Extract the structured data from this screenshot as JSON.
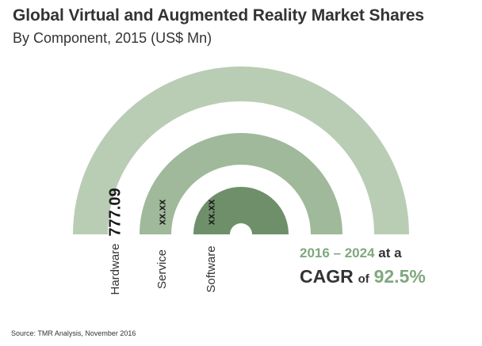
{
  "header": {
    "title": "Global Virtual and Augmented Reality Market Shares",
    "subtitle": "By Component, 2015 (US$ Mn)"
  },
  "chart_data": {
    "type": "pie",
    "subtype": "semi-donut-rings",
    "title": "Global Virtual and Augmented Reality Market Shares",
    "subtitle": "By Component, 2015 (US$ Mn)",
    "categories": [
      "Hardware",
      "Service",
      "Software"
    ],
    "value_labels": [
      "777.09",
      "xx.xx",
      "xx.xx"
    ],
    "values": [
      777.09,
      null,
      null
    ],
    "colors": [
      "#b9cdb5",
      "#9fb99a",
      "#6f8f6b"
    ],
    "category_label_color": "#333333"
  },
  "cagr": {
    "years": "2016 – 2024",
    "at_a": "at a",
    "cagr_label": "CAGR",
    "of": "of",
    "value": "92.5%"
  },
  "source": "Source: TMR Analysis, November 2016"
}
